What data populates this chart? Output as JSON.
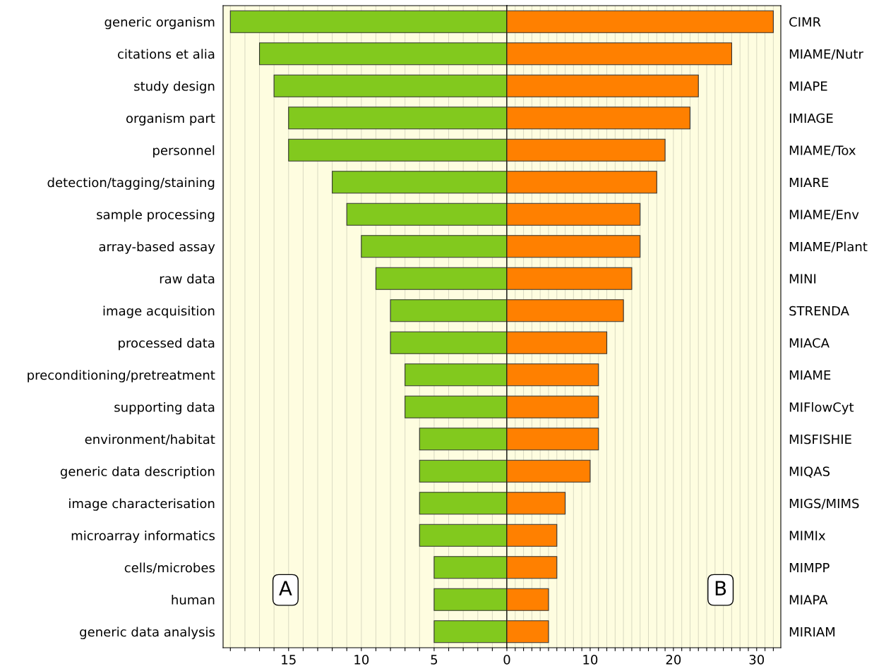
{
  "chart_data": [
    {
      "type": "bar",
      "orientation": "horizontal",
      "categories": [
        "generic organism",
        "citations et alia",
        "study design",
        "organism part",
        "personnel",
        "detection/tagging/staining",
        "sample processing",
        "array-based assay",
        "raw data",
        "image acquisition",
        "processed data",
        "preconditioning/pretreatment",
        "supporting data",
        "environment/habitat",
        "generic data description",
        "image characterisation",
        "microarray informatics",
        "cells/microbes",
        "human",
        "generic data analysis"
      ],
      "values": [
        19,
        17,
        16,
        15,
        15,
        12,
        11,
        10,
        9,
        8,
        8,
        7,
        7,
        6,
        6,
        6,
        6,
        5,
        5,
        5
      ],
      "color": "#82c91e",
      "xlim": [
        19.5,
        0
      ],
      "xticks": [
        {
          "value": 19,
          "label": null
        },
        {
          "value": 18,
          "label": null
        },
        {
          "value": 17,
          "label": null
        },
        {
          "value": 16,
          "label": null
        },
        15,
        {
          "value": 14,
          "label": null
        },
        {
          "value": 13,
          "label": null
        },
        {
          "value": 12,
          "label": null
        },
        {
          "value": 11,
          "label": null
        },
        10,
        {
          "value": 9,
          "label": null
        },
        {
          "value": 8,
          "label": null
        },
        {
          "value": 7,
          "label": null
        },
        {
          "value": 6,
          "label": null
        },
        5,
        {
          "value": 4,
          "label": null
        },
        {
          "value": 3,
          "label": null
        },
        {
          "value": 2,
          "label": null
        },
        {
          "value": 1,
          "label": null
        },
        0
      ],
      "grid": "x",
      "annotations": [
        "A"
      ]
    },
    {
      "type": "bar",
      "orientation": "horizontal",
      "categories": [
        "CIMR",
        "MIAME/Nutr",
        "MIAPE",
        "IMIAGE",
        "MIAME/Tox",
        "MIARE",
        "MIAME/Env",
        "MIAME/Plant",
        "MINI",
        "STRENDA",
        "MIACA",
        "MIAME",
        "MIFlowCyt",
        "MISFISHIE",
        "MIQAS",
        "MIGS/MIMS",
        "MIMIx",
        "MIMPP",
        "MIAPA",
        "MIRIAM"
      ],
      "values": [
        32,
        27,
        23,
        22,
        19,
        18,
        16,
        16,
        15,
        14,
        12,
        11,
        11,
        11,
        10,
        7,
        6,
        6,
        5,
        5
      ],
      "color": "#ff8000",
      "xlim": [
        0,
        32.9
      ],
      "xticks": [
        {
          "value": 1,
          "label": null
        },
        {
          "value": 2,
          "label": null
        },
        {
          "value": 3,
          "label": null
        },
        {
          "value": 4,
          "label": null
        },
        {
          "value": 5,
          "label": null
        },
        {
          "value": 6,
          "label": null
        },
        {
          "value": 7,
          "label": null
        },
        {
          "value": 8,
          "label": null
        },
        {
          "value": 9,
          "label": null
        },
        10,
        {
          "value": 11,
          "label": null
        },
        {
          "value": 12,
          "label": null
        },
        {
          "value": 13,
          "label": null
        },
        {
          "value": 14,
          "label": null
        },
        {
          "value": 15,
          "label": null
        },
        {
          "value": 16,
          "label": null
        },
        {
          "value": 17,
          "label": null
        },
        {
          "value": 18,
          "label": null
        },
        {
          "value": 19,
          "label": null
        },
        20,
        {
          "value": 21,
          "label": null
        },
        {
          "value": 22,
          "label": null
        },
        {
          "value": 23,
          "label": null
        },
        {
          "value": 24,
          "label": null
        },
        {
          "value": 25,
          "label": null
        },
        {
          "value": 26,
          "label": null
        },
        {
          "value": 27,
          "label": null
        },
        {
          "value": 28,
          "label": null
        },
        {
          "value": 29,
          "label": null
        },
        30,
        {
          "value": 31,
          "label": null
        },
        {
          "value": 32,
          "label": null
        }
      ],
      "grid": "x",
      "annotations": [
        "B"
      ]
    }
  ]
}
